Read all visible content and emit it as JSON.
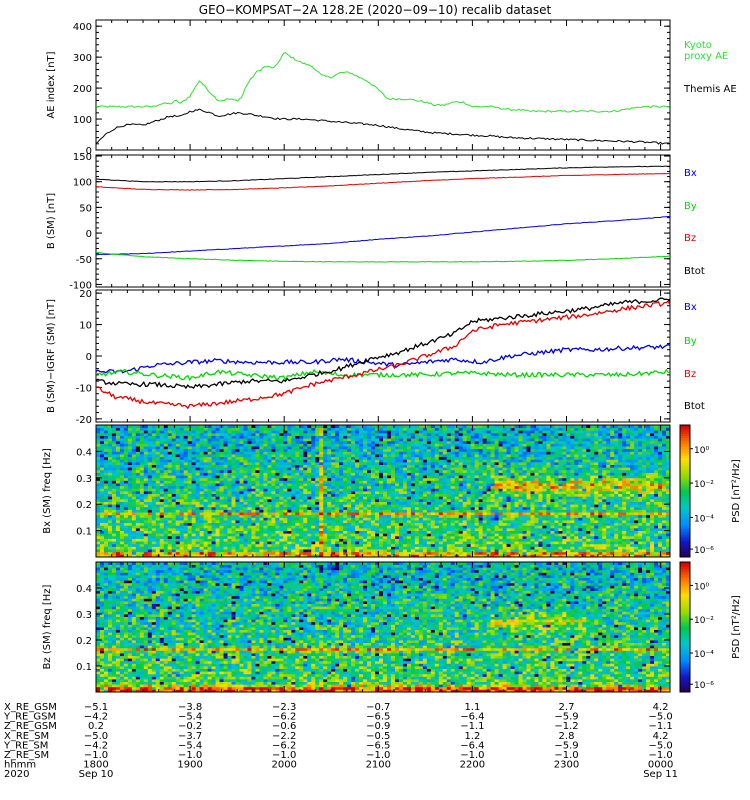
{
  "title": "GEO−KOMPSAT−2A 128.2E (2020−09−10) recalib dataset",
  "colors": {
    "black": "#000000",
    "red": "#e00000",
    "green": "#00d800",
    "blue": "#0000e0",
    "ae_green": "#30e030"
  },
  "chart_data": [
    {
      "type": "line",
      "name": "ae-panel",
      "ylabel": "AE index [nT]",
      "ylim": [
        0,
        420
      ],
      "yticks": [
        0,
        100,
        200,
        300,
        400
      ],
      "xlim": [
        18.0,
        24.1
      ],
      "series": [
        {
          "name": "Kyoto proxy AE",
          "label_lines": [
            "Kyoto",
            "proxy AE"
          ],
          "color": "#30e030",
          "x": [
            18.0,
            18.2,
            18.4,
            18.5,
            18.6,
            18.7,
            18.8,
            18.85,
            18.9,
            19.0,
            19.1,
            19.2,
            19.3,
            19.35,
            19.4,
            19.5,
            19.55,
            19.6,
            19.7,
            19.8,
            19.9,
            20.0,
            20.1,
            20.2,
            20.3,
            20.4,
            20.5,
            20.6,
            20.7,
            20.8,
            20.9,
            21.0,
            21.1,
            21.2,
            21.3,
            21.4,
            21.5,
            21.6,
            21.7,
            21.8,
            21.9,
            22.0,
            22.1,
            22.2,
            22.3,
            22.4,
            22.5,
            22.6,
            22.7,
            22.8,
            22.9,
            23.0,
            23.2,
            23.5,
            23.8,
            24.1
          ],
          "y": [
            140,
            140,
            140,
            140,
            140,
            150,
            150,
            160,
            150,
            175,
            225,
            190,
            160,
            160,
            165,
            160,
            170,
            210,
            250,
            270,
            265,
            315,
            295,
            280,
            270,
            240,
            235,
            250,
            250,
            235,
            220,
            195,
            165,
            165,
            165,
            160,
            155,
            145,
            145,
            155,
            155,
            140,
            140,
            140,
            135,
            130,
            130,
            125,
            125,
            125,
            125,
            125,
            125,
            125,
            140,
            140
          ]
        },
        {
          "name": "Themis AE",
          "color": "#000000",
          "x": [
            18.0,
            18.1,
            18.2,
            18.3,
            18.4,
            18.5,
            18.6,
            18.7,
            18.8,
            18.9,
            19.0,
            19.1,
            19.2,
            19.3,
            19.4,
            19.5,
            19.6,
            19.7,
            19.8,
            19.9,
            20.0,
            20.2,
            20.4,
            20.6,
            20.8,
            21.0,
            21.2,
            21.4,
            21.6,
            21.8,
            22.0,
            22.2,
            22.4,
            22.6,
            22.8,
            23.0,
            23.2,
            23.4,
            23.6,
            23.8,
            24.0,
            24.1
          ],
          "y": [
            20,
            50,
            70,
            80,
            82,
            80,
            90,
            100,
            110,
            108,
            125,
            130,
            122,
            110,
            115,
            120,
            118,
            112,
            108,
            102,
            100,
            100,
            95,
            90,
            85,
            80,
            70,
            62,
            55,
            52,
            48,
            45,
            40,
            38,
            36,
            34,
            32,
            30,
            28,
            26,
            22,
            20
          ]
        }
      ]
    },
    {
      "type": "line",
      "name": "b-panel",
      "ylabel": "B (SM) [nT]",
      "ylim": [
        -105,
        152
      ],
      "yticks": [
        -100,
        -50,
        0,
        50,
        100,
        150
      ],
      "xlim": [
        18.0,
        24.1
      ],
      "series": [
        {
          "name": "Bx",
          "color": "#0000e0",
          "x": [
            18.0,
            18.5,
            19.0,
            19.5,
            20.0,
            20.5,
            21.0,
            21.5,
            22.0,
            22.5,
            23.0,
            23.5,
            24.1
          ],
          "y": [
            -42,
            -40,
            -35,
            -30,
            -25,
            -20,
            -12,
            -6,
            2,
            10,
            18,
            24,
            32
          ]
        },
        {
          "name": "By",
          "color": "#00d800",
          "x": [
            18.0,
            18.5,
            19.0,
            19.5,
            20.0,
            20.5,
            21.0,
            21.5,
            22.0,
            22.5,
            23.0,
            23.5,
            24.1
          ],
          "y": [
            -38,
            -46,
            -50,
            -53,
            -55,
            -56,
            -56,
            -56,
            -56,
            -55,
            -53,
            -50,
            -45
          ]
        },
        {
          "name": "Bz",
          "color": "#e00000",
          "x": [
            18.0,
            18.5,
            19.0,
            19.5,
            20.0,
            20.5,
            21.0,
            21.5,
            22.0,
            22.5,
            23.0,
            23.5,
            24.1
          ],
          "y": [
            90,
            85,
            84,
            85,
            88,
            92,
            97,
            102,
            106,
            109,
            112,
            114,
            116
          ]
        },
        {
          "name": "Btot",
          "color": "#000000",
          "x": [
            18.0,
            18.5,
            19.0,
            19.5,
            20.0,
            20.5,
            21.0,
            21.5,
            22.0,
            22.5,
            23.0,
            23.5,
            24.1
          ],
          "y": [
            105,
            100,
            100,
            102,
            106,
            110,
            114,
            118,
            121,
            124,
            127,
            129,
            130
          ]
        }
      ]
    },
    {
      "type": "line",
      "name": "db-panel",
      "ylabel": "B (SM)−IGRF (SM) [nT]",
      "ylim": [
        -21,
        21
      ],
      "yticks": [
        -20,
        -10,
        0,
        10,
        20
      ],
      "xlim": [
        18.0,
        24.1
      ],
      "series": [
        {
          "name": "Bx",
          "color": "#0000e0",
          "x": [
            18.0,
            18.3,
            18.6,
            19.0,
            19.3,
            19.6,
            20.0,
            20.3,
            20.6,
            20.9,
            21.2,
            21.5,
            21.8,
            22.1,
            22.4,
            22.7,
            23.0,
            23.3,
            23.6,
            24.1
          ],
          "y": [
            -5,
            -5,
            -3,
            -2,
            -1.5,
            -2,
            -2,
            -2,
            -1,
            -2,
            -3,
            -2,
            -1,
            -2,
            0,
            1,
            2,
            2,
            2.5,
            3
          ]
        },
        {
          "name": "By",
          "color": "#00d800",
          "x": [
            18.0,
            18.3,
            18.6,
            19.0,
            19.3,
            19.6,
            20.0,
            20.3,
            20.6,
            20.9,
            21.2,
            21.5,
            21.8,
            22.1,
            22.4,
            22.7,
            23.0,
            23.3,
            23.6,
            24.1
          ],
          "y": [
            -6,
            -5,
            -6,
            -7,
            -5,
            -6,
            -7,
            -5,
            -6,
            -6,
            -6,
            -6,
            -5.5,
            -5.5,
            -6,
            -6,
            -6,
            -6,
            -6,
            -5
          ]
        },
        {
          "name": "Bz",
          "color": "#e00000",
          "x": [
            18.0,
            18.2,
            18.4,
            18.6,
            19.0,
            19.3,
            19.6,
            20.0,
            20.3,
            20.6,
            20.9,
            21.2,
            21.5,
            21.8,
            22.0,
            22.3,
            22.6,
            22.9,
            23.2,
            23.6,
            24.1
          ],
          "y": [
            -10,
            -13,
            -14,
            -15,
            -16,
            -15,
            -14,
            -12,
            -9,
            -7,
            -5,
            -3,
            0,
            3,
            8,
            10,
            11,
            12,
            13,
            15,
            17
          ]
        },
        {
          "name": "Btot",
          "color": "#000000",
          "x": [
            18.0,
            18.3,
            18.6,
            19.0,
            19.3,
            19.6,
            20.0,
            20.3,
            20.6,
            20.9,
            21.2,
            21.5,
            21.8,
            22.0,
            22.3,
            22.6,
            22.9,
            23.2,
            23.6,
            24.1
          ],
          "y": [
            -8,
            -9,
            -9,
            -10,
            -9,
            -8,
            -8,
            -6,
            -4,
            -1,
            1,
            4,
            7,
            11,
            12,
            13,
            14,
            15,
            17,
            18
          ]
        }
      ]
    },
    {
      "type": "heatmap",
      "name": "bx-spectrogram",
      "ylabel": "Bx (SM) freq [Hz]",
      "ylim": [
        0,
        0.5
      ],
      "yticks": [
        0.1,
        0.2,
        0.3,
        0.4
      ],
      "xlim": [
        18.0,
        24.1
      ],
      "colorbar_label": "PSD [nT²/Hz]",
      "colorbar_ticks": [
        "10⁰",
        "10⁻²",
        "10⁻⁴",
        "10⁻⁶"
      ],
      "features": {
        "band_freq": 0.165,
        "spike_time": 20.4,
        "enhanced_freq_range": [
          0.22,
          0.32
        ],
        "enhanced_time_range": [
          22.2,
          24.1
        ]
      }
    },
    {
      "type": "heatmap",
      "name": "bz-spectrogram",
      "ylabel": "Bz (SM) freq [Hz]",
      "ylim": [
        0,
        0.5
      ],
      "yticks": [
        0.1,
        0.2,
        0.3,
        0.4
      ],
      "xlim": [
        18.0,
        24.1
      ],
      "colorbar_label": "PSD [nT²/Hz]",
      "colorbar_ticks": [
        "10⁰",
        "10⁻²",
        "10⁻⁴",
        "10⁻⁶"
      ],
      "features": {
        "band_freq": 0.165,
        "enhanced_freq_range": [
          0.22,
          0.32
        ],
        "enhanced_time_range": [
          22.2,
          23.2
        ]
      }
    }
  ],
  "orbit_table": {
    "rows": [
      {
        "label": "X_RE_GSM",
        "values": [
          "−5.1",
          "−3.8",
          "−2.3",
          "−0.7",
          "1.1",
          "2.7",
          "4.2"
        ]
      },
      {
        "label": "Y_RE_GSM",
        "values": [
          "−4.2",
          "−5.4",
          "−6.2",
          "−6.5",
          "−6.4",
          "−5.9",
          "−5.0"
        ]
      },
      {
        "label": "Z_RE_GSM",
        "values": [
          "0.2",
          "−0.2",
          "−0.6",
          "−0.9",
          "−1.1",
          "−1.2",
          "−1.1"
        ]
      },
      {
        "label": "X_RE_SM",
        "values": [
          "−5.0",
          "−3.7",
          "−2.2",
          "−0.5",
          "1.2",
          "2.8",
          "4.2"
        ]
      },
      {
        "label": "Y_RE_SM",
        "values": [
          "−4.2",
          "−5.4",
          "−6.2",
          "−6.5",
          "−6.4",
          "−5.9",
          "−5.0"
        ]
      },
      {
        "label": "Z_RE_SM",
        "values": [
          "−1.0",
          "−1.0",
          "−1.0",
          "−1.0",
          "−1.0",
          "−1.0",
          "−1.0"
        ]
      },
      {
        "label": "hhmm",
        "values": [
          "1800",
          "1900",
          "2000",
          "2100",
          "2200",
          "2300",
          "0000"
        ]
      }
    ],
    "year_label": "2020",
    "date_start": "Sep 10",
    "date_end": "Sep 11"
  }
}
